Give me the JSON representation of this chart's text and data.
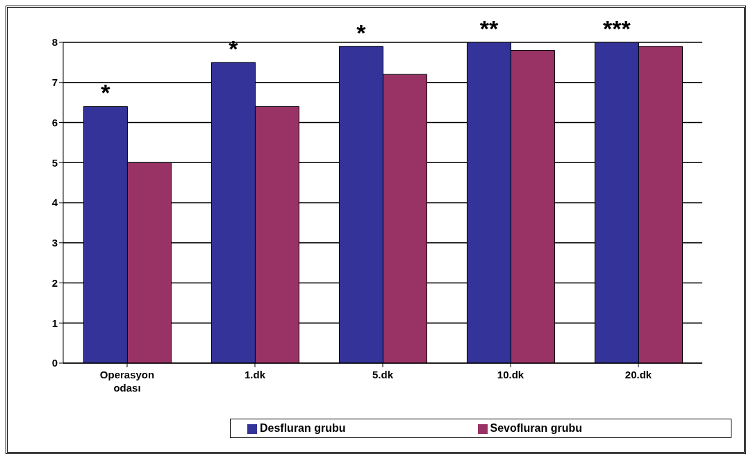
{
  "chart_data": {
    "type": "bar",
    "categories": [
      "Operasyon odası",
      "1.dk",
      "5.dk",
      "10.dk",
      "20.dk"
    ],
    "series": [
      {
        "name": "Desfluran  grubu",
        "color": "#333399",
        "values": [
          6.4,
          7.5,
          7.9,
          8.0,
          8.0
        ]
      },
      {
        "name": "Sevofluran   grubu",
        "color": "#993366",
        "values": [
          5.0,
          6.4,
          7.2,
          7.8,
          7.9
        ]
      }
    ],
    "ylim": [
      0,
      8
    ],
    "yticks": [
      0,
      1,
      2,
      3,
      4,
      5,
      6,
      7,
      8
    ],
    "grid": "y",
    "legend": "bottom",
    "annotations": [
      {
        "text": "*",
        "x": "Operasyon odası",
        "y": 6.4
      },
      {
        "text": "*",
        "x": "1.dk",
        "y": 7.5
      },
      {
        "text": "*",
        "x": "5.dk",
        "y": 7.9
      },
      {
        "text": "**",
        "x": "10.dk",
        "y": 8.0
      },
      {
        "text": "***",
        "x": "20.dk",
        "y": 8.0
      }
    ]
  }
}
